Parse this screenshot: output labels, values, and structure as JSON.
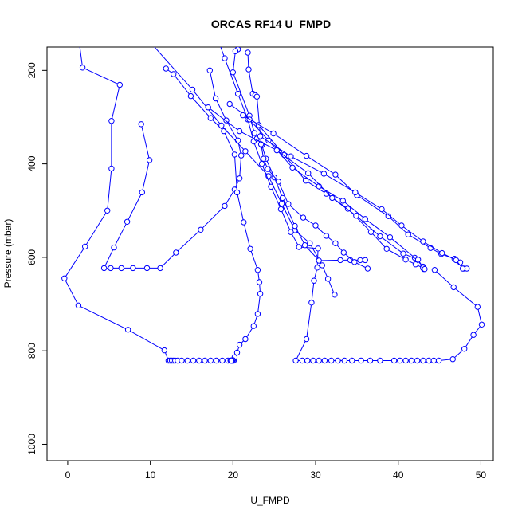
{
  "chart_data": {
    "type": "line",
    "title": "ORCAS RF14 U_FMPD",
    "xlabel": "U_FMPD",
    "ylabel": "Pressure (mbar)",
    "xlim": [
      -2.5,
      51.5
    ],
    "ylim": [
      1035,
      150
    ],
    "x_ticks": [
      0,
      10,
      20,
      30,
      40,
      50
    ],
    "y_ticks": [
      200,
      400,
      600,
      800,
      1000
    ],
    "grid": false,
    "legend": "none",
    "marker": "open-circle",
    "series_color": "#0000ff",
    "series": [
      {
        "x": [
          1.4,
          1.8,
          6.3,
          5.3,
          5.3,
          4.8,
          2.1,
          -0.4,
          1.3,
          7.3,
          11.7,
          12.2,
          12.4,
          12.6,
          12.8,
          13.0,
          13.3,
          13.8,
          14.5,
          15.2,
          15.9,
          16.6,
          17.3,
          18.0,
          18.7,
          19.4,
          19.7,
          19.8,
          19.9,
          20.0,
          20.1
        ],
        "y": [
          140,
          194,
          231,
          308,
          410,
          500,
          577,
          645,
          703,
          755,
          799,
          821,
          821,
          821,
          821,
          821,
          821,
          821,
          821,
          821,
          821,
          821,
          821,
          821,
          821,
          821,
          821,
          821,
          821,
          821,
          821
        ]
      },
      {
        "x": [
          8.9,
          9.9,
          9.0,
          7.2,
          5.6,
          4.4,
          5.2,
          6.5,
          7.9,
          9.6,
          11.2,
          13.1,
          16.1,
          19.0,
          20.2,
          20.8,
          21.0,
          20.6,
          19.2,
          17.9,
          17.2
        ],
        "y": [
          315,
          392,
          461,
          524,
          579,
          623,
          623,
          623,
          623,
          623,
          623,
          590,
          541,
          490,
          455,
          431,
          382,
          350,
          307,
          260,
          200
        ]
      },
      {
        "x": [
          11.9,
          12.8,
          14.9,
          17.3,
          18.9,
          20.2,
          20.5,
          21.3,
          22.1,
          23.0,
          23.2,
          23.3,
          23.0,
          22.5,
          21.5,
          20.8,
          20.5,
          20.2,
          20.0,
          19.9,
          19.8
        ],
        "y": [
          196,
          208,
          255,
          302,
          330,
          380,
          461,
          525,
          582,
          627,
          653,
          678,
          721,
          747,
          775,
          787,
          804,
          814,
          820,
          821,
          821
        ]
      },
      {
        "x": [
          10.0,
          15.1,
          18.6,
          21.5,
          24.3,
          25.9,
          27.5,
          29.3,
          30.8,
          31.5,
          32.3
        ],
        "y": [
          140,
          241,
          318,
          373,
          426,
          485,
          542,
          570,
          617,
          646,
          680
        ]
      },
      {
        "x": [
          17.5,
          19.0,
          20.6,
          21.8,
          22.5,
          23.5,
          24.6,
          25.8,
          27.0,
          28.0,
          30.3,
          30.2,
          29.8,
          29.5,
          28.9,
          27.6,
          28.4,
          29.0,
          29.7,
          30.4,
          31.1,
          31.9,
          32.7,
          33.5,
          34.4,
          35.5,
          36.6,
          37.8,
          39.5,
          40.2,
          40.9,
          41.6,
          42.3,
          43.0,
          43.7,
          44.3,
          44.9,
          46.6,
          48.0,
          49.1,
          50.1,
          49.6,
          46.7,
          44.4
        ],
        "y": [
          100,
          174,
          250,
          305,
          352,
          400,
          449,
          497,
          546,
          578,
          581,
          622,
          650,
          697,
          775,
          821,
          821,
          821,
          821,
          821,
          821,
          821,
          821,
          821,
          821,
          821,
          821,
          821,
          821,
          821,
          821,
          821,
          821,
          821,
          821,
          821,
          821,
          818,
          796,
          766,
          744,
          706,
          664,
          627
        ]
      },
      {
        "x": [
          20.6,
          20.3,
          20.0,
          22.0,
          22.6,
          22.9,
          23.5,
          24.0,
          25.0,
          26.0,
          27.5,
          28.7,
          30.4,
          33.0,
          34.2,
          35.4,
          36.0
        ],
        "y": [
          155,
          159,
          204,
          297,
          334,
          346,
          360,
          389,
          429,
          473,
          533,
          574,
          607,
          606,
          606,
          606,
          606
        ]
      },
      {
        "x": [
          21.8,
          21.9,
          22.4,
          22.7,
          22.9,
          23.4,
          23.7,
          24.2,
          25.5,
          26.7,
          28.5,
          30.0,
          31.3,
          32.4,
          33.4,
          34.7,
          36.3
        ],
        "y": [
          162,
          198,
          250,
          253,
          256,
          358,
          389,
          411,
          438,
          486,
          515,
          532,
          554,
          570,
          590,
          610,
          624
        ]
      },
      {
        "x": [
          19.6,
          23.1,
          26.2,
          28.8,
          31.3,
          33.9,
          36.7,
          38.6,
          40.9,
          42.1,
          43.0
        ],
        "y": [
          272,
          317,
          381,
          436,
          464,
          496,
          546,
          582,
          605,
          615,
          623
        ]
      },
      {
        "x": [
          22.0,
          24.3,
          27.2,
          30.4,
          33.3,
          36.0,
          39.0,
          42.0,
          43.0,
          43.1
        ],
        "y": [
          305,
          350,
          408,
          448,
          479,
          518,
          557,
          601,
          620,
          625
        ]
      },
      {
        "x": [
          17.0,
          20.8,
          25.3,
          29.1,
          32.0,
          34.9,
          37.8,
          40.6,
          42.4,
          43.0,
          43.2
        ],
        "y": [
          279,
          330,
          371,
          420,
          473,
          511,
          555,
          592,
          605,
          622,
          625
        ]
      },
      {
        "x": [
          21.2,
          24.9,
          28.9,
          32.4,
          35.0,
          38.8,
          41.2,
          43.9,
          45.2,
          46.8,
          47.5,
          47.9,
          48.3
        ],
        "y": [
          296,
          335,
          383,
          423,
          467,
          512,
          551,
          580,
          593,
          603,
          611,
          624,
          624
        ]
      },
      {
        "x": [
          23.3,
          27.0,
          31.0,
          34.8,
          38.0,
          40.4,
          43.0,
          45.3,
          47.0,
          47.8
        ],
        "y": [
          341,
          384,
          421,
          461,
          497,
          532,
          566,
          591,
          606,
          624
        ]
      }
    ]
  }
}
